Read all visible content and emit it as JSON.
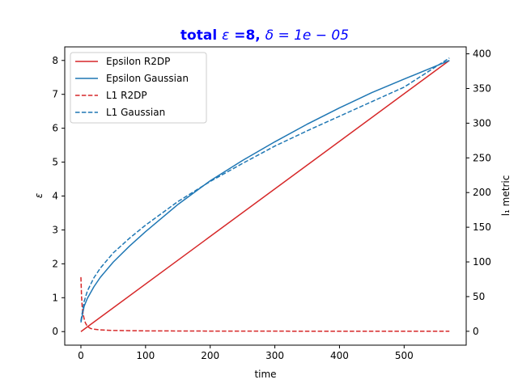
{
  "chart_data": {
    "type": "line",
    "title_parts": {
      "bold": "total ",
      "eps_sym": "ε",
      "bold2": " =8, ",
      "math": "δ = 1e − 05"
    },
    "title_color": "#0000ff",
    "xlabel": "time",
    "ylabel": "ε",
    "ylabel_right": "l₁ metric",
    "xlim": [
      -25,
      596
    ],
    "ylim": [
      -0.4,
      8.4
    ],
    "ylim_right": [
      -20,
      410
    ],
    "x_ticks": [
      0,
      100,
      200,
      300,
      400,
      500
    ],
    "y_ticks": [
      0,
      1,
      2,
      3,
      4,
      5,
      6,
      7,
      8
    ],
    "y_ticks_right": [
      0,
      50,
      100,
      150,
      200,
      250,
      300,
      350,
      400
    ],
    "legend_position": "upper-left",
    "series": [
      {
        "name": "Epsilon R2DP",
        "color": "#d62728",
        "dash": "solid",
        "axis": "left",
        "x": [
          0,
          570
        ],
        "y": [
          0.0,
          8.0
        ]
      },
      {
        "name": "Epsilon Gaussian",
        "color": "#1f77b4",
        "dash": "solid",
        "axis": "left",
        "x": [
          0,
          5,
          10,
          20,
          30,
          50,
          75,
          100,
          150,
          200,
          250,
          300,
          350,
          400,
          450,
          500,
          570
        ],
        "y": [
          0.27,
          0.75,
          0.98,
          1.32,
          1.6,
          2.05,
          2.52,
          2.95,
          3.75,
          4.45,
          5.05,
          5.6,
          6.12,
          6.6,
          7.05,
          7.45,
          8.0
        ]
      },
      {
        "name": "L1 R2DP",
        "color": "#d62728",
        "dash": "dashed",
        "axis": "right",
        "x": [
          0,
          1,
          2,
          3,
          5,
          7,
          10,
          15,
          20,
          30,
          50,
          100,
          200,
          300,
          400,
          570
        ],
        "y": [
          78,
          50,
          35,
          27,
          18,
          12,
          7,
          4,
          3,
          2,
          1.2,
          0.6,
          0.3,
          0.2,
          0.1,
          0.1
        ]
      },
      {
        "name": "L1 Gaussian",
        "color": "#1f77b4",
        "dash": "dashed",
        "axis": "right",
        "x": [
          0,
          5,
          10,
          20,
          30,
          50,
          75,
          100,
          150,
          200,
          250,
          300,
          350,
          400,
          450,
          500,
          570
        ],
        "y": [
          15,
          43,
          58,
          77,
          91,
          113,
          134,
          153,
          187,
          216,
          242,
          267,
          289,
          310,
          331,
          352,
          394
        ]
      }
    ]
  }
}
